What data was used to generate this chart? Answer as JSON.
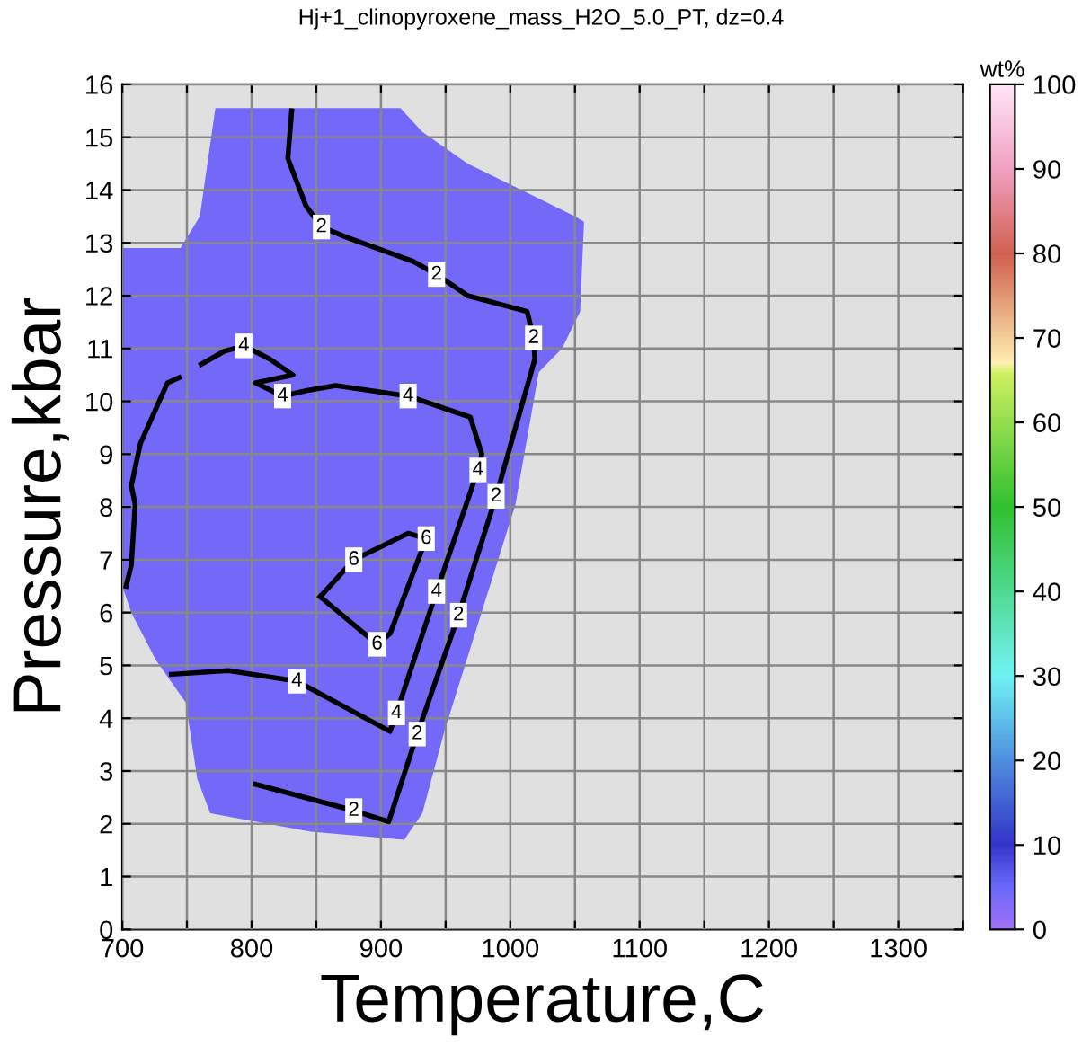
{
  "chart_data": {
    "type": "line",
    "title": "Hj+1_clinopyroxene_mass_H2O_5.0_PT, dz=0.4",
    "xlabel": "Temperature,C",
    "ylabel": "Pressure,kbar",
    "clabel": "wt%",
    "clim": [
      0,
      100
    ],
    "cticks": [
      0,
      10,
      20,
      30,
      40,
      50,
      60,
      70,
      80,
      90,
      100
    ],
    "xlim": [
      700,
      1350
    ],
    "ylim": [
      0,
      16
    ],
    "xticks": [
      700,
      {
        "value": 750,
        "label": null
      },
      800,
      {
        "value": 850,
        "label": null
      },
      900,
      {
        "value": 950,
        "label": null
      },
      1000,
      {
        "value": 1050,
        "label": null
      },
      1100,
      {
        "value": 1150,
        "label": null
      },
      1200,
      {
        "value": 1250,
        "label": null
      },
      1300,
      {
        "value": 1350,
        "label": null
      }
    ],
    "yticks": [
      0,
      1,
      2,
      3,
      4,
      5,
      6,
      7,
      8,
      9,
      10,
      11,
      12,
      13,
      14,
      15,
      16
    ],
    "grid": true,
    "series": [
      {
        "type": "area",
        "color": "#7468f8",
        "x": [
          700,
          745,
          760,
          772,
          915,
          932,
          967,
          1013,
          1050,
          1057,
          1054,
          1040,
          1022,
          1004,
          949,
          932,
          918,
          846,
          768,
          758,
          749,
          726,
          707,
          700
        ],
        "values": [
          12.9,
          12.9,
          13.5,
          15.55,
          15.55,
          15.1,
          14.5,
          13.95,
          13.5,
          13.4,
          11.7,
          11.0,
          10.55,
          8.05,
          3.75,
          2.2,
          1.7,
          1.85,
          2.2,
          2.85,
          4.3,
          5.1,
          6.0,
          6.5
        ]
      },
      {
        "color": "#000000",
        "x": [
          831,
          828,
          842,
          854,
          874,
          925,
          943,
          967,
          1013,
          1018,
          1019,
          989,
          960,
          928,
          906,
          879,
          803
        ],
        "values": [
          15.5,
          14.6,
          13.7,
          13.3,
          13.1,
          12.65,
          12.4,
          12.0,
          11.7,
          11.2,
          10.8,
          8.2,
          5.95,
          3.7,
          2.04,
          2.25,
          2.75
        ]
      },
      {
        "color": "#000000",
        "x": [
          738,
          782,
          835,
          907,
          912,
          943,
          975,
          978,
          969,
          921,
          865,
          842,
          824,
          803,
          832,
          814,
          794,
          779,
          761
        ],
        "values": [
          4.83,
          4.9,
          4.7,
          3.75,
          4.1,
          6.4,
          8.7,
          9.0,
          9.7,
          10.1,
          10.3,
          10.2,
          10.1,
          10.35,
          10.5,
          10.8,
          11.05,
          10.95,
          10.7
        ]
      },
      {
        "color": "#000000",
        "x": [
          744,
          735,
          714,
          707,
          710,
          707,
          703
        ],
        "values": [
          10.45,
          10.35,
          9.2,
          8.4,
          8.05,
          6.9,
          6.5
        ]
      },
      {
        "color": "#000000",
        "x": [
          853,
          879,
          921,
          935
        ],
        "values": [
          6.3,
          7.0,
          7.5,
          7.4
        ]
      },
      {
        "color": "#000000",
        "x": [
          853,
          897,
          907,
          935
        ],
        "values": [
          6.3,
          5.4,
          5.6,
          7.4
        ]
      }
    ],
    "annotations": [
      {
        "text": "2",
        "x": 854,
        "y": 13.3
      },
      {
        "text": "2",
        "x": 943,
        "y": 12.4
      },
      {
        "text": "2",
        "x": 1018,
        "y": 11.2
      },
      {
        "text": "4",
        "x": 975,
        "y": 8.7
      },
      {
        "text": "2",
        "x": 989,
        "y": 8.2
      },
      {
        "text": "4",
        "x": 943,
        "y": 6.4
      },
      {
        "text": "2",
        "x": 960,
        "y": 5.95
      },
      {
        "text": "4",
        "x": 912,
        "y": 4.1
      },
      {
        "text": "2",
        "x": 928,
        "y": 3.7
      },
      {
        "text": "2",
        "x": 879,
        "y": 2.25
      },
      {
        "text": "4",
        "x": 794,
        "y": 11.05
      },
      {
        "text": "4",
        "x": 824,
        "y": 10.1
      },
      {
        "text": "4",
        "x": 921,
        "y": 10.1
      },
      {
        "text": "4",
        "x": 835,
        "y": 4.7
      },
      {
        "text": "6",
        "x": 879,
        "y": 7.0
      },
      {
        "text": "6",
        "x": 935,
        "y": 7.4
      },
      {
        "text": "6",
        "x": 897,
        "y": 5.4
      }
    ]
  }
}
